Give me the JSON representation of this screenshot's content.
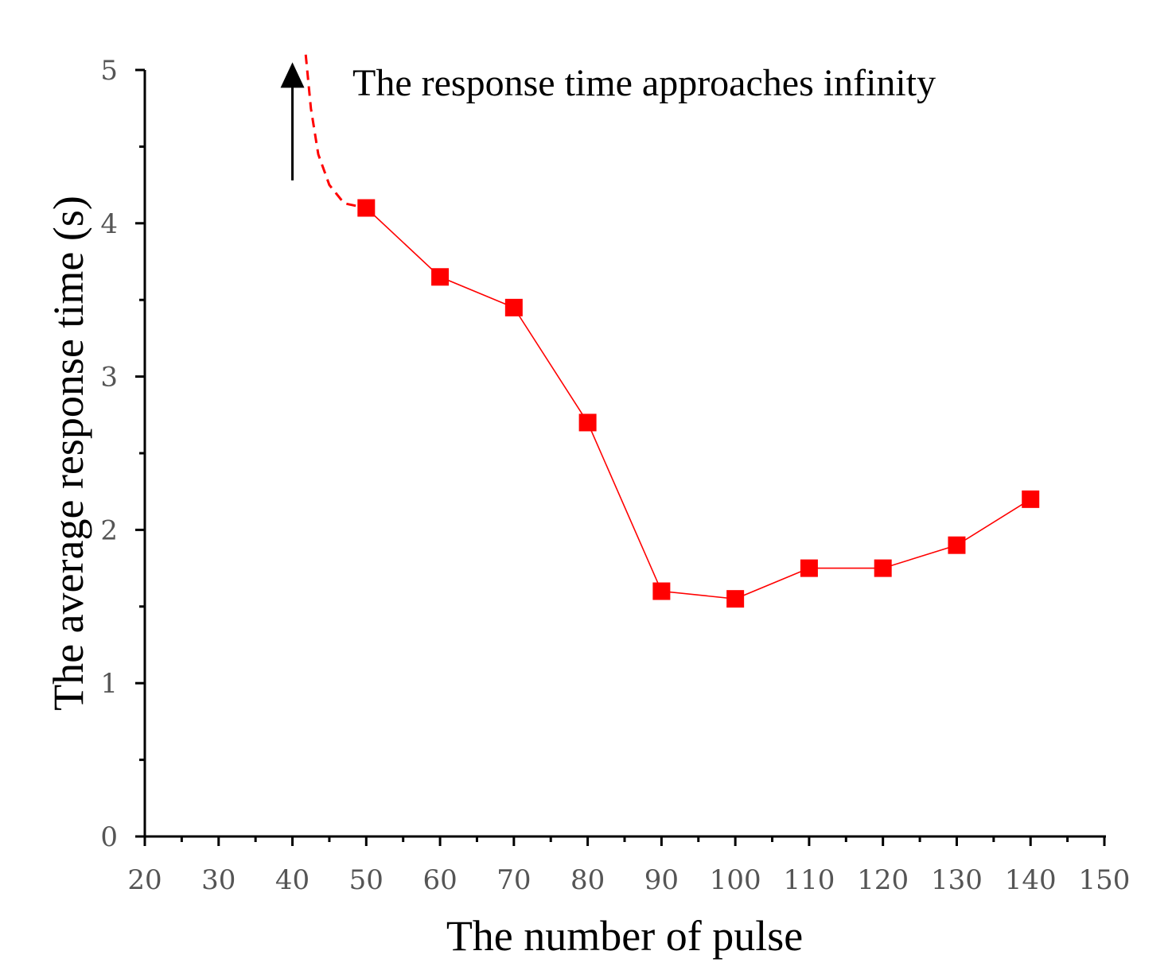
{
  "chart_data": {
    "type": "line",
    "title": "",
    "xlabel": "The number of pulse",
    "ylabel": "The average response time (s)",
    "xlim": [
      20,
      150
    ],
    "ylim": [
      0,
      5
    ],
    "xticks": [
      20,
      30,
      40,
      50,
      60,
      70,
      80,
      90,
      100,
      110,
      120,
      130,
      140,
      150
    ],
    "yticks": [
      0,
      1,
      2,
      3,
      4,
      5
    ],
    "grid": false,
    "series": [
      {
        "name": "Average response time",
        "color": "#ff0000",
        "marker": "square",
        "x": [
          50,
          60,
          70,
          80,
          90,
          100,
          110,
          120,
          130,
          140
        ],
        "y": [
          4.1,
          3.65,
          3.45,
          2.7,
          1.6,
          1.55,
          1.75,
          1.75,
          1.9,
          2.2
        ]
      }
    ],
    "asymptote_curve": {
      "style": "dashed",
      "color": "#ff0000",
      "x": [
        41.8,
        42.5,
        43.5,
        45,
        47,
        50
      ],
      "y": [
        5.1,
        4.75,
        4.45,
        4.25,
        4.13,
        4.1
      ]
    },
    "annotation": {
      "text": "The response time approaches infinity",
      "arrow_x": 40,
      "arrow_from_y": 4.28,
      "arrow_to_y": 5.05
    }
  }
}
